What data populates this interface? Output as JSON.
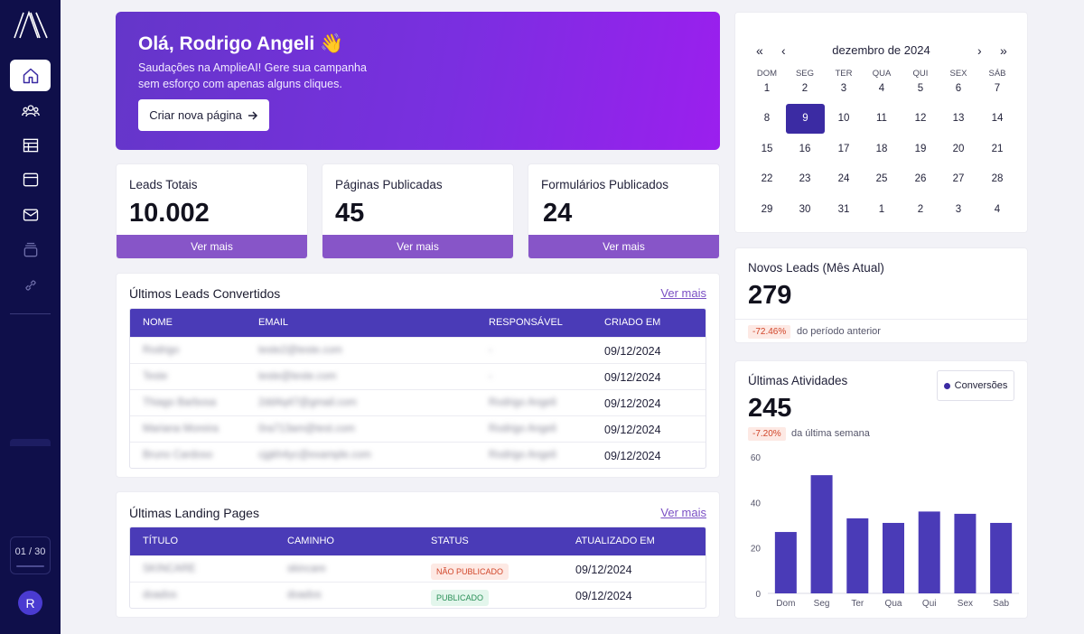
{
  "sidebar": {
    "page_counter": "01 / 30",
    "avatar_initial": "R",
    "items": [
      "home-icon",
      "users-icon",
      "table-icon",
      "browser-icon",
      "mail-icon",
      "archive-icon",
      "link-icon"
    ]
  },
  "hero": {
    "title": "Olá, Rodrigo Angeli 👋",
    "subtitle": "Saudações na AmplieAI! Gere sua campanha sem esforço com apenas alguns cliques.",
    "button": "Criar nova página"
  },
  "stats": [
    {
      "label": "Leads Totais",
      "value": "10.002",
      "more": "Ver mais"
    },
    {
      "label": "Páginas Publicadas",
      "value": "45",
      "more": "Ver mais"
    },
    {
      "label": "Formulários Publicados",
      "value": "24",
      "more": "Ver mais"
    }
  ],
  "leads": {
    "title": "Últimos Leads Convertidos",
    "more": "Ver mais",
    "headers": [
      "NOME",
      "EMAIL",
      "RESPONSÁVEL",
      "CRIADO EM"
    ],
    "rows": [
      [
        "Rodrigo",
        "teste2@teste.com",
        "-",
        "09/12/2024"
      ],
      [
        "Teste",
        "teste@teste.com",
        "-",
        "09/12/2024"
      ],
      [
        "Thiago Barbosa",
        "2dd4q47@gmail.com",
        "Rodrigo Angeli",
        "09/12/2024"
      ],
      [
        "Mariana Moreira",
        "0ra713am@test.com",
        "Rodrigo Angeli",
        "09/12/2024"
      ],
      [
        "Bruno Cardoso",
        "cjgkh4yc@example.com",
        "Rodrigo Angeli",
        "09/12/2024"
      ]
    ]
  },
  "landing": {
    "title": "Últimas Landing Pages",
    "more": "Ver mais",
    "headers": [
      "TÍTULO",
      "CAMINHO",
      "STATUS",
      "ATUALIZADO EM"
    ],
    "rows": [
      [
        "SKINCARE",
        "skincare",
        "NÃO PUBLICADO",
        "09/12/2024"
      ],
      [
        "doados",
        "doados",
        "PUBLICADO",
        "09/12/2024"
      ]
    ]
  },
  "calendar": {
    "month": "dezembro de 2024",
    "nav": {
      "prev_year": "«",
      "prev": "‹",
      "next": "›",
      "next_year": "»"
    },
    "dow": [
      "DOM",
      "SEG",
      "TER",
      "QUA",
      "QUI",
      "SEX",
      "SÁB"
    ],
    "weeks": [
      [
        "1",
        "2",
        "3",
        "4",
        "5",
        "6",
        "7"
      ],
      [
        "8",
        "9",
        "10",
        "11",
        "12",
        "13",
        "14"
      ],
      [
        "15",
        "16",
        "17",
        "18",
        "19",
        "20",
        "21"
      ],
      [
        "22",
        "23",
        "24",
        "25",
        "26",
        "27",
        "28"
      ],
      [
        "29",
        "30",
        "31",
        "1",
        "2",
        "3",
        "4"
      ]
    ],
    "selected": "9"
  },
  "new_leads": {
    "label": "Novos Leads (Mês Atual)",
    "value": "279",
    "delta": "-72.46%",
    "delta_text": "do período anterior"
  },
  "activities": {
    "label": "Últimas Atividades",
    "value": "245",
    "delta": "-7.20%",
    "delta_text": "da última semana",
    "legend": "Conversões"
  },
  "chart_data": {
    "type": "bar",
    "categories": [
      "Dom",
      "Seg",
      "Ter",
      "Qua",
      "Qui",
      "Sex",
      "Sab"
    ],
    "series": [
      {
        "name": "Conversões",
        "values": [
          27,
          52,
          33,
          31,
          36,
          35,
          31
        ]
      }
    ],
    "ylim": [
      0,
      60
    ],
    "yticks": [
      0,
      20,
      40,
      60
    ],
    "color": "#4a3bb7"
  }
}
